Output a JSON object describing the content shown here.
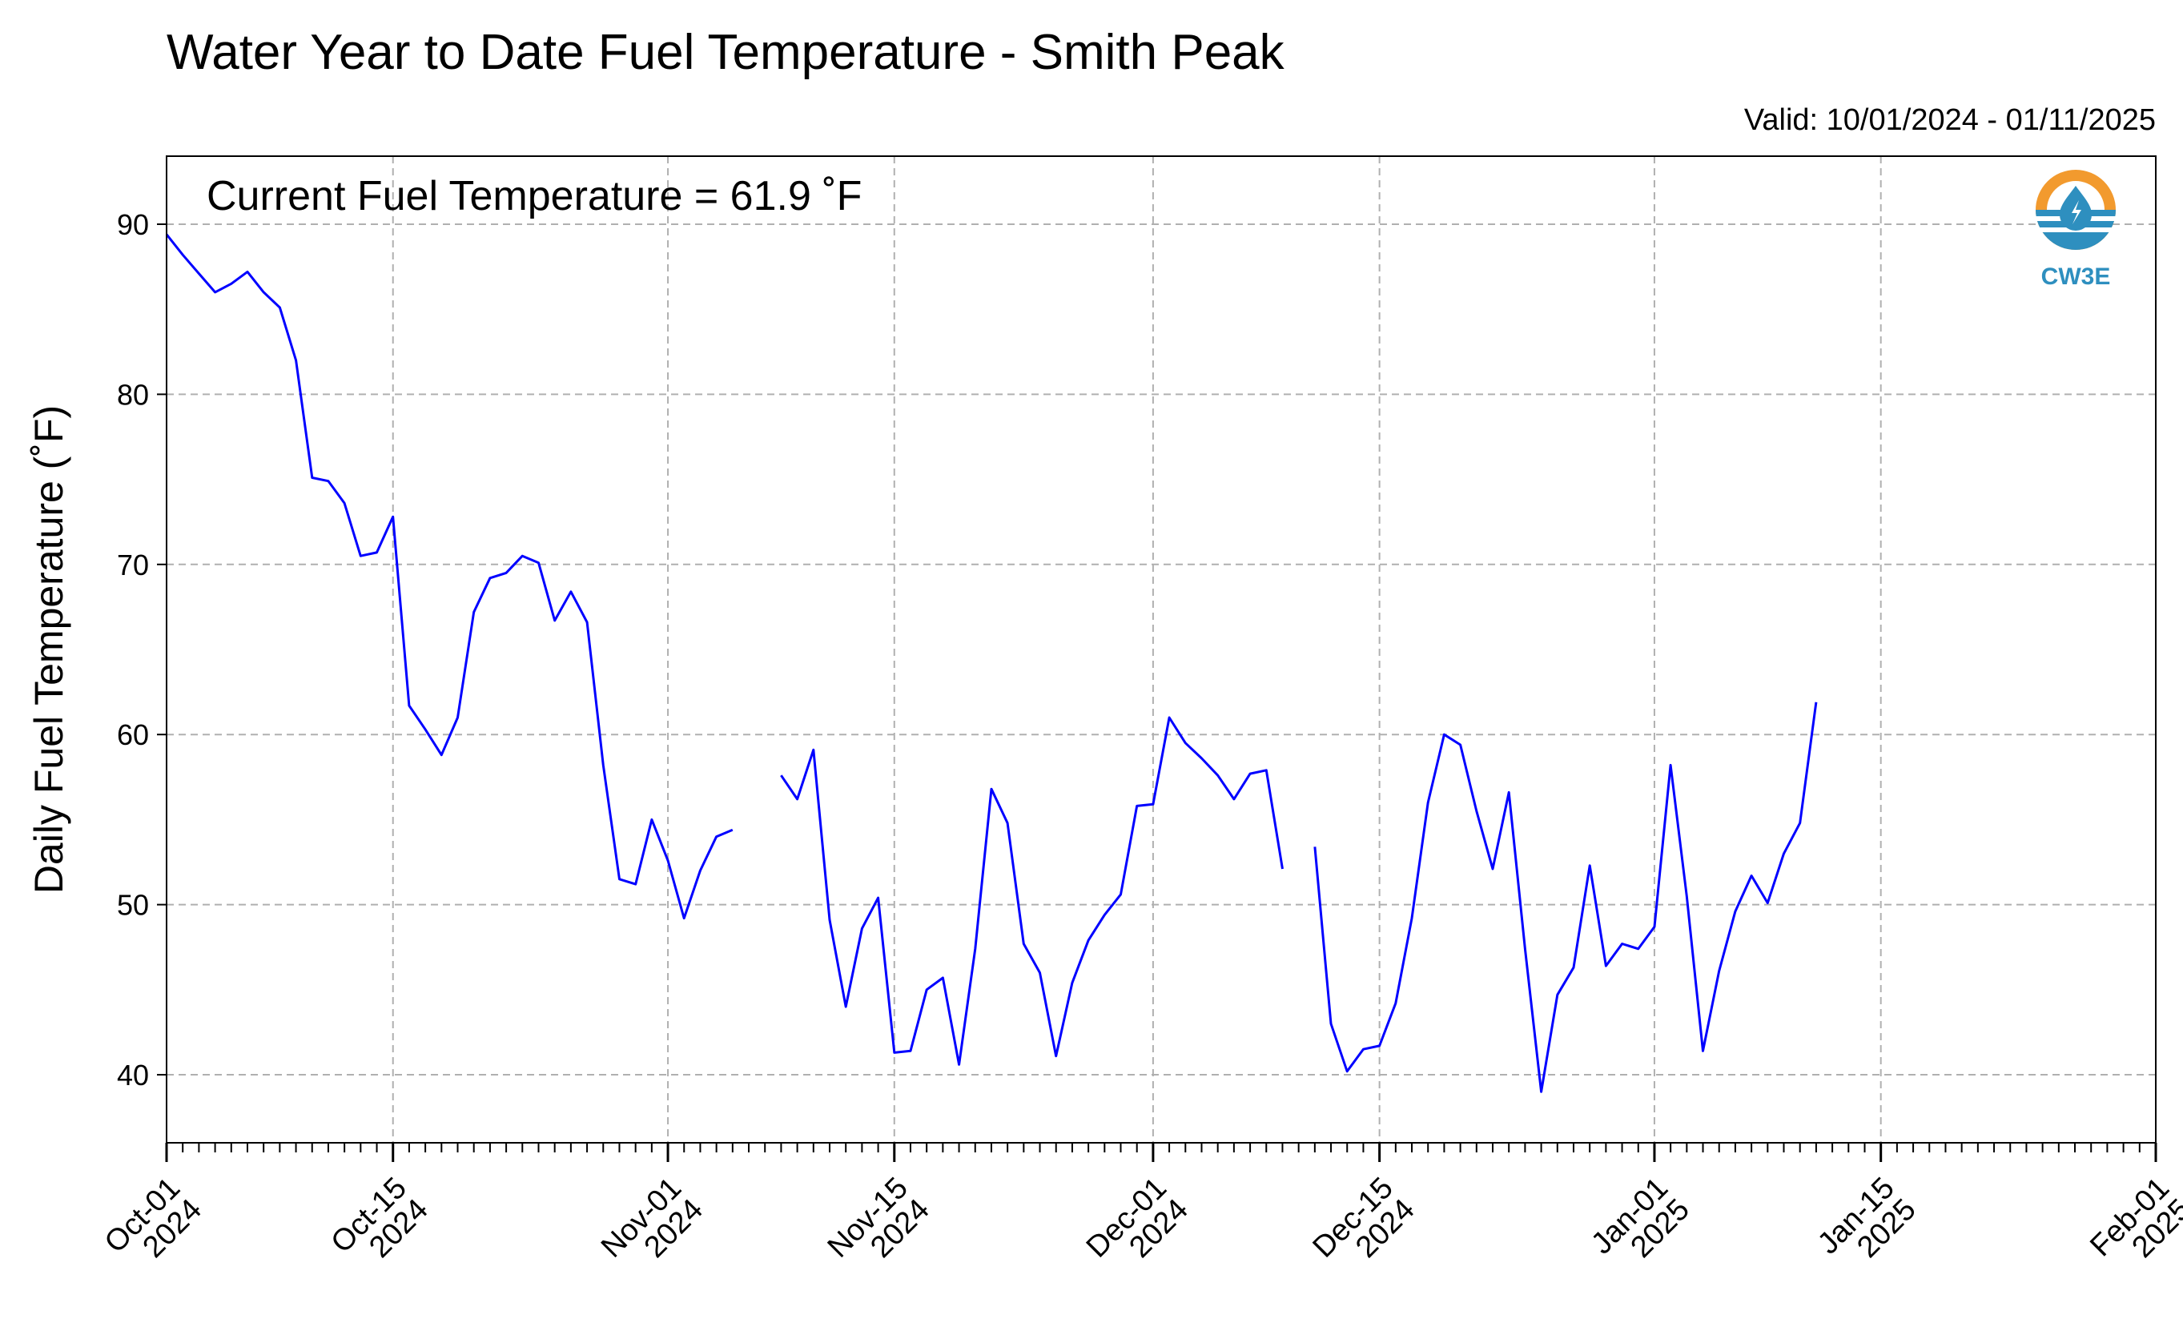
{
  "title": "Water Year to Date Fuel Temperature - Smith Peak",
  "valid_text": "Valid: 10/01/2024 - 01/11/2025",
  "current_text": "Current Fuel Temperature = 61.9  ˚F",
  "logo": {
    "text": "CW3E",
    "icon": "cw3e-logo-icon",
    "colors": {
      "ring": "#f29a2e",
      "water": "#2e8fbf"
    }
  },
  "colors": {
    "line": "#0000ff",
    "grid": "#b0b0b0"
  },
  "chart_data": {
    "type": "line",
    "title": "Water Year to Date Fuel Temperature - Smith Peak",
    "ylabel": "Daily Fuel Temperature (˚F)",
    "xlabel": "",
    "xlim": [
      "2024-10-01",
      "2025-02-01"
    ],
    "ylim": [
      36,
      94
    ],
    "yticks": [
      40,
      50,
      60,
      70,
      80,
      90
    ],
    "xticks": [
      {
        "date": "2024-10-01",
        "l1": "Oct-01",
        "l2": "2024"
      },
      {
        "date": "2024-10-15",
        "l1": "Oct-15",
        "l2": "2024"
      },
      {
        "date": "2024-11-01",
        "l1": "Nov-01",
        "l2": "2024"
      },
      {
        "date": "2024-11-15",
        "l1": "Nov-15",
        "l2": "2024"
      },
      {
        "date": "2024-12-01",
        "l1": "Dec-01",
        "l2": "2024"
      },
      {
        "date": "2024-12-15",
        "l1": "Dec-15",
        "l2": "2024"
      },
      {
        "date": "2025-01-01",
        "l1": "Jan-01",
        "l2": "2025"
      },
      {
        "date": "2025-01-15",
        "l1": "Jan-15",
        "l2": "2025"
      },
      {
        "date": "2025-02-01",
        "l1": "Feb-01",
        "l2": "2025"
      }
    ],
    "grid": true,
    "series": [
      {
        "points": [
          [
            "2024-10-01",
            89.4
          ],
          [
            "2024-10-02",
            88.2
          ],
          [
            "2024-10-03",
            87.1
          ],
          [
            "2024-10-04",
            86.0
          ],
          [
            "2024-10-05",
            86.5
          ],
          [
            "2024-10-06",
            87.2
          ],
          [
            "2024-10-07",
            86.0
          ],
          [
            "2024-10-08",
            85.1
          ],
          [
            "2024-10-09",
            82.0
          ],
          [
            "2024-10-10",
            75.1
          ],
          [
            "2024-10-11",
            74.9
          ],
          [
            "2024-10-12",
            73.6
          ],
          [
            "2024-10-13",
            70.5
          ],
          [
            "2024-10-14",
            70.7
          ],
          [
            "2024-10-15",
            72.8
          ],
          [
            "2024-10-16",
            61.7
          ],
          [
            "2024-10-17",
            60.3
          ],
          [
            "2024-10-18",
            58.8
          ],
          [
            "2024-10-19",
            61.0
          ],
          [
            "2024-10-20",
            67.2
          ],
          [
            "2024-10-21",
            69.2
          ],
          [
            "2024-10-22",
            69.5
          ],
          [
            "2024-10-23",
            70.5
          ],
          [
            "2024-10-24",
            70.1
          ],
          [
            "2024-10-25",
            66.7
          ],
          [
            "2024-10-26",
            68.4
          ],
          [
            "2024-10-27",
            66.6
          ],
          [
            "2024-10-28",
            58.2
          ],
          [
            "2024-10-29",
            51.5
          ],
          [
            "2024-10-30",
            51.2
          ],
          [
            "2024-10-31",
            55.0
          ],
          [
            "2024-11-01",
            52.6
          ],
          [
            "2024-11-02",
            49.2
          ],
          [
            "2024-11-03",
            52.0
          ],
          [
            "2024-11-04",
            54.0
          ],
          [
            "2024-11-05",
            54.4
          ],
          null,
          [
            "2024-11-08",
            57.6
          ],
          [
            "2024-11-09",
            56.2
          ],
          [
            "2024-11-10",
            59.1
          ],
          [
            "2024-11-11",
            49.1
          ],
          [
            "2024-11-12",
            44.0
          ],
          [
            "2024-11-13",
            48.6
          ],
          [
            "2024-11-14",
            50.4
          ],
          [
            "2024-11-15",
            41.3
          ],
          [
            "2024-11-16",
            41.4
          ],
          [
            "2024-11-17",
            45.0
          ],
          [
            "2024-11-18",
            45.7
          ],
          [
            "2024-11-19",
            40.6
          ],
          [
            "2024-11-20",
            47.4
          ],
          [
            "2024-11-21",
            56.8
          ],
          [
            "2024-11-22",
            54.8
          ],
          [
            "2024-11-23",
            47.7
          ],
          [
            "2024-11-24",
            46.0
          ],
          [
            "2024-11-25",
            41.1
          ],
          [
            "2024-11-26",
            45.4
          ],
          [
            "2024-11-27",
            47.9
          ],
          [
            "2024-11-28",
            49.4
          ],
          [
            "2024-11-29",
            50.6
          ],
          [
            "2024-11-30",
            55.8
          ],
          [
            "2024-12-01",
            55.9
          ],
          [
            "2024-12-02",
            61.0
          ],
          [
            "2024-12-03",
            59.5
          ],
          [
            "2024-12-04",
            58.6
          ],
          [
            "2024-12-05",
            57.6
          ],
          [
            "2024-12-06",
            56.2
          ],
          [
            "2024-12-07",
            57.7
          ],
          [
            "2024-12-08",
            57.9
          ],
          [
            "2024-12-09",
            52.1
          ],
          null,
          [
            "2024-12-11",
            53.4
          ],
          [
            "2024-12-12",
            43.0
          ],
          [
            "2024-12-13",
            40.2
          ],
          [
            "2024-12-14",
            41.5
          ],
          [
            "2024-12-15",
            41.7
          ],
          [
            "2024-12-16",
            44.2
          ],
          [
            "2024-12-17",
            49.2
          ],
          [
            "2024-12-18",
            56.0
          ],
          [
            "2024-12-19",
            60.0
          ],
          [
            "2024-12-20",
            59.4
          ],
          [
            "2024-12-21",
            55.5
          ],
          [
            "2024-12-22",
            52.1
          ],
          [
            "2024-12-23",
            56.6
          ],
          [
            "2024-12-24",
            47.4
          ],
          [
            "2024-12-25",
            39.0
          ],
          [
            "2024-12-26",
            44.7
          ],
          [
            "2024-12-27",
            46.3
          ],
          [
            "2024-12-28",
            52.3
          ],
          [
            "2024-12-29",
            46.4
          ],
          [
            "2024-12-30",
            47.7
          ],
          [
            "2024-12-31",
            47.4
          ],
          [
            "2025-01-01",
            48.7
          ],
          [
            "2025-01-02",
            58.2
          ],
          [
            "2025-01-03",
            50.5
          ],
          [
            "2025-01-04",
            41.4
          ],
          [
            "2025-01-05",
            46.1
          ],
          [
            "2025-01-06",
            49.6
          ],
          [
            "2025-01-07",
            51.7
          ],
          [
            "2025-01-08",
            50.1
          ],
          [
            "2025-01-09",
            53.0
          ],
          [
            "2025-01-10",
            54.8
          ],
          [
            "2025-01-11",
            61.9
          ]
        ]
      }
    ]
  }
}
